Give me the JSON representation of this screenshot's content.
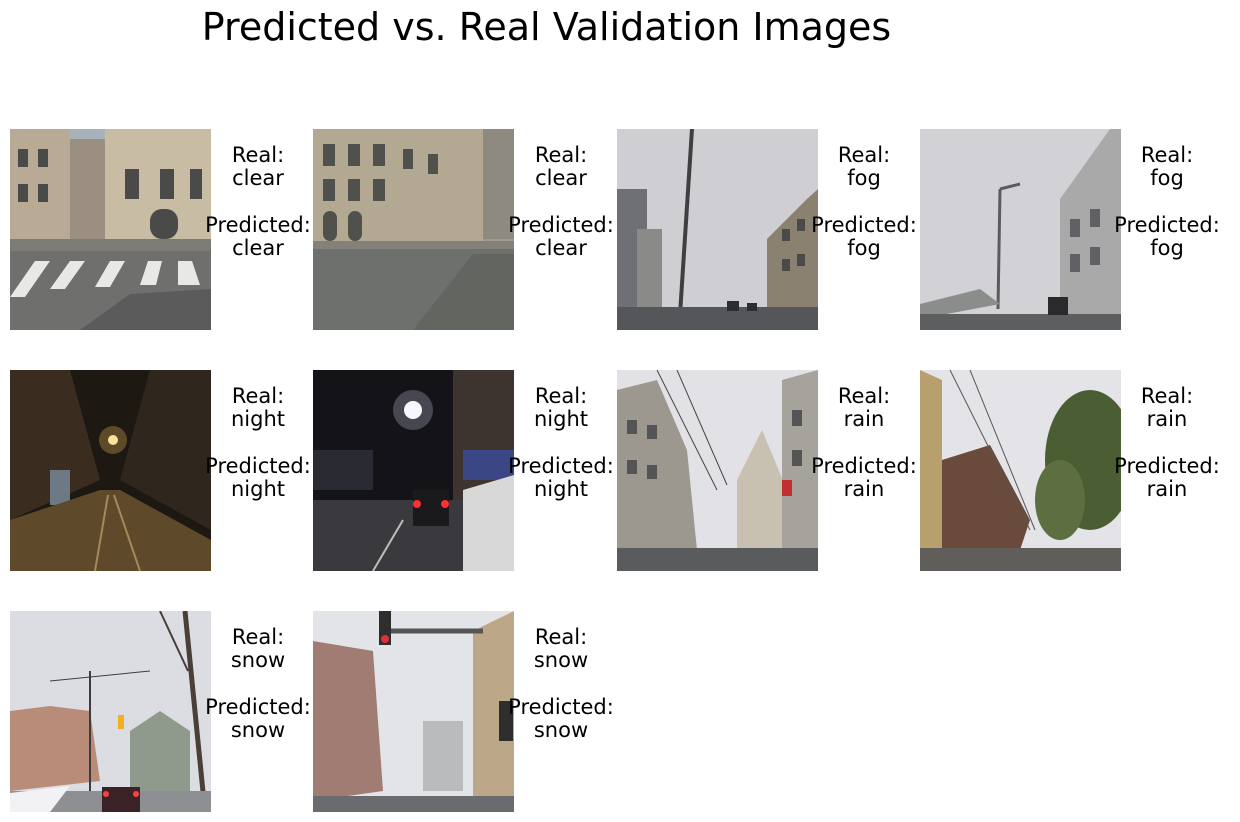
{
  "title": "Predicted vs. Real Validation Images",
  "real_label": "Real:",
  "predicted_label": "Predicted:",
  "panels": [
    {
      "real": "clear",
      "predicted": "clear",
      "scene": "clear-street-crosswalk"
    },
    {
      "real": "clear",
      "predicted": "clear",
      "scene": "clear-street-buildings"
    },
    {
      "real": "fog",
      "predicted": "fog",
      "scene": "fog-highway-pole"
    },
    {
      "real": "fog",
      "predicted": "fog",
      "scene": "fog-road-building"
    },
    {
      "real": "night",
      "predicted": "night",
      "scene": "night-street-tram"
    },
    {
      "real": "night",
      "predicted": "night",
      "scene": "night-street-cars"
    },
    {
      "real": "rain",
      "predicted": "rain",
      "scene": "rain-street-buildings"
    },
    {
      "real": "rain",
      "predicted": "rain",
      "scene": "rain-road-trees"
    },
    {
      "real": "snow",
      "predicted": "snow",
      "scene": "snow-street-traffic-light"
    },
    {
      "real": "snow",
      "predicted": "snow",
      "scene": "snow-street-signals"
    }
  ]
}
